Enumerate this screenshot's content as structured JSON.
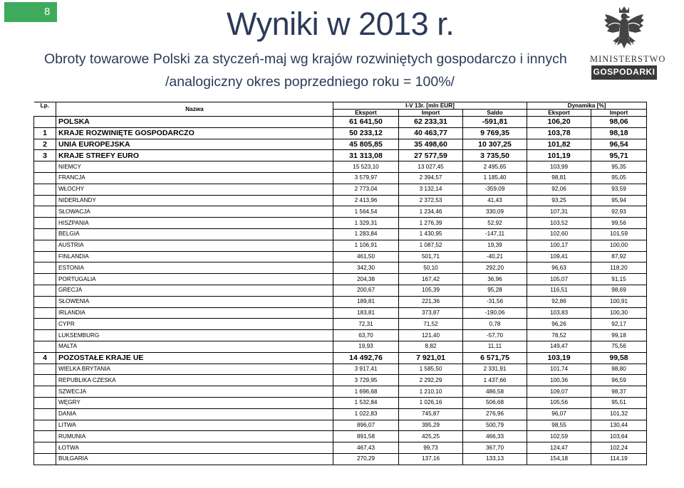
{
  "page_number": "8",
  "title": "Wyniki w 2013 r.",
  "subtitle_line1": "Obroty towarowe Polski za styczeń-maj wg krajów rozwiniętych gospodarczo i innych",
  "subtitle_line2": "/analogiczny okres poprzedniego roku = 100%/",
  "logo": {
    "icon": "eagle-emblem-icon",
    "line1": "MINISTERSTWO",
    "line2": "GOSPODARKI"
  },
  "table": {
    "header": {
      "lp": "Lp.",
      "name": "Nazwa",
      "group1": "I-V 13r. [mln EUR]",
      "group2": "Dynamika [%]",
      "cols": [
        "Eksport",
        "Import",
        "Saldo",
        "Eksport",
        "Import"
      ]
    },
    "rows": [
      {
        "lp": "",
        "name": "POLSKA",
        "v": [
          "61 641,50",
          "62 233,31",
          "-591,81",
          "106,20",
          "98,06"
        ],
        "major": true
      },
      {
        "lp": "1",
        "name": "KRAJE ROZWINIĘTE GOSPODARCZO",
        "v": [
          "50 233,12",
          "40 463,77",
          "9 769,35",
          "103,78",
          "98,18"
        ],
        "major": true
      },
      {
        "lp": "2",
        "name": "UNIA EUROPEJSKA",
        "v": [
          "45 805,85",
          "35 498,60",
          "10 307,25",
          "101,82",
          "96,54"
        ],
        "major": true
      },
      {
        "lp": "3",
        "name": "KRAJE STREFY EURO",
        "v": [
          "31 313,08",
          "27 577,59",
          "3 735,50",
          "101,19",
          "95,71"
        ],
        "major": true
      },
      {
        "lp": "",
        "name": "NIEMCY",
        "v": [
          "15 523,10",
          "13 027,45",
          "2 495,65",
          "103,99",
          "95,35"
        ],
        "major": false
      },
      {
        "lp": "",
        "name": "FRANCJA",
        "v": [
          "3 579,97",
          "2 394,57",
          "1 185,40",
          "98,81",
          "95,05"
        ],
        "major": false
      },
      {
        "lp": "",
        "name": "WŁOCHY",
        "v": [
          "2 773,04",
          "3 132,14",
          "-359,09",
          "92,06",
          "93,59"
        ],
        "major": false
      },
      {
        "lp": "",
        "name": "NIDERLANDY",
        "v": [
          "2 413,96",
          "2 372,53",
          "41,43",
          "93,25",
          "95,94"
        ],
        "major": false
      },
      {
        "lp": "",
        "name": "SŁOWACJA",
        "v": [
          "1 564,54",
          "1 234,46",
          "330,09",
          "107,31",
          "92,93"
        ],
        "major": false
      },
      {
        "lp": "",
        "name": "HISZPANIA",
        "v": [
          "1 329,31",
          "1 276,39",
          "52,92",
          "103,52",
          "99,56"
        ],
        "major": false
      },
      {
        "lp": "",
        "name": "BELGIA",
        "v": [
          "1 283,84",
          "1 430,95",
          "-147,11",
          "102,60",
          "101,59"
        ],
        "major": false
      },
      {
        "lp": "",
        "name": "AUSTRIA",
        "v": [
          "1 106,91",
          "1 087,52",
          "19,39",
          "100,17",
          "100,00"
        ],
        "major": false
      },
      {
        "lp": "",
        "name": "FINLANDIA",
        "v": [
          "461,50",
          "501,71",
          "-40,21",
          "109,41",
          "87,92"
        ],
        "major": false
      },
      {
        "lp": "",
        "name": "ESTONIA",
        "v": [
          "342,30",
          "50,10",
          "292,20",
          "96,63",
          "118,20"
        ],
        "major": false
      },
      {
        "lp": "",
        "name": "PORTUGALIA",
        "v": [
          "204,38",
          "167,42",
          "36,96",
          "105,07",
          "91,15"
        ],
        "major": false
      },
      {
        "lp": "",
        "name": "GRECJA",
        "v": [
          "200,67",
          "105,39",
          "95,28",
          "116,51",
          "98,69"
        ],
        "major": false
      },
      {
        "lp": "",
        "name": "SŁOWENIA",
        "v": [
          "189,81",
          "221,36",
          "-31,56",
          "92,86",
          "100,91"
        ],
        "major": false
      },
      {
        "lp": "",
        "name": "IRLANDIA",
        "v": [
          "183,81",
          "373,87",
          "-190,06",
          "103,83",
          "100,30"
        ],
        "major": false
      },
      {
        "lp": "",
        "name": "CYPR",
        "v": [
          "72,31",
          "71,52",
          "0,78",
          "96,26",
          "92,17"
        ],
        "major": false
      },
      {
        "lp": "",
        "name": "LUKSEMBURG",
        "v": [
          "63,70",
          "121,40",
          "-57,70",
          "78,52",
          "99,18"
        ],
        "major": false
      },
      {
        "lp": "",
        "name": "MALTA",
        "v": [
          "19,93",
          "8,82",
          "11,11",
          "149,47",
          "75,56"
        ],
        "major": false
      },
      {
        "lp": "4",
        "name": "POZOSTAŁE KRAJE UE",
        "v": [
          "14 492,76",
          "7 921,01",
          "6 571,75",
          "103,19",
          "99,58"
        ],
        "major": true
      },
      {
        "lp": "",
        "name": "WIELKA BRYTANIA",
        "v": [
          "3 917,41",
          "1 585,50",
          "2 331,91",
          "101,74",
          "98,80"
        ],
        "major": false
      },
      {
        "lp": "",
        "name": "REPUBLIKA CZESKA",
        "v": [
          "3 729,95",
          "2 292,29",
          "1 437,66",
          "100,36",
          "96,59"
        ],
        "major": false
      },
      {
        "lp": "",
        "name": "SZWECJA",
        "v": [
          "1 696,68",
          "1 210,10",
          "486,58",
          "109,07",
          "98,37"
        ],
        "major": false
      },
      {
        "lp": "",
        "name": "WĘGRY",
        "v": [
          "1 532,84",
          "1 026,16",
          "506,68",
          "105,56",
          "95,51"
        ],
        "major": false
      },
      {
        "lp": "",
        "name": "DANIA",
        "v": [
          "1 022,83",
          "745,87",
          "276,96",
          "96,07",
          "101,32"
        ],
        "major": false
      },
      {
        "lp": "",
        "name": "LITWA",
        "v": [
          "896,07",
          "395,29",
          "500,79",
          "98,55",
          "130,44"
        ],
        "major": false
      },
      {
        "lp": "",
        "name": "RUMUNIA",
        "v": [
          "891,58",
          "425,25",
          "466,33",
          "102,59",
          "103,64"
        ],
        "major": false
      },
      {
        "lp": "",
        "name": "ŁOTWA",
        "v": [
          "467,43",
          "99,73",
          "367,70",
          "124,47",
          "102,24"
        ],
        "major": false
      },
      {
        "lp": "",
        "name": "BUŁGARIA",
        "v": [
          "270,29",
          "137,16",
          "133,13",
          "154,18",
          "114,19"
        ],
        "major": false
      }
    ]
  }
}
